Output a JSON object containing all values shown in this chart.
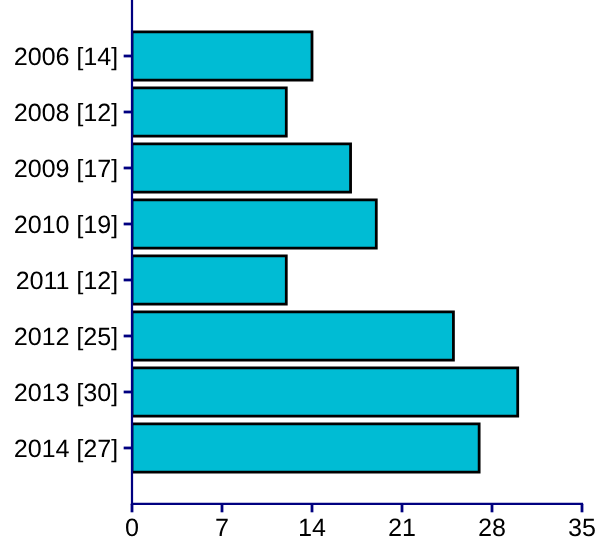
{
  "chart_data": {
    "type": "bar",
    "orientation": "horizontal",
    "categories": [
      "2006 [14]",
      "2008 [12]",
      "2009 [17]",
      "2010 [19]",
      "2011 [12]",
      "2012 [25]",
      "2013 [30]",
      "2014 [27]"
    ],
    "values": [
      14,
      12,
      17,
      19,
      12,
      25,
      30,
      27
    ],
    "color": "#00bcd4",
    "xlim": [
      0,
      35
    ],
    "xticks": [
      0,
      7,
      14,
      21,
      28,
      35
    ],
    "grid": false
  }
}
